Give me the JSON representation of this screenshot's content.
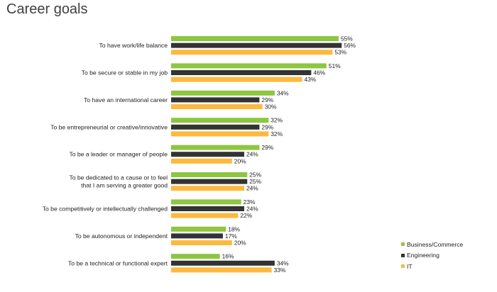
{
  "title": "Career goals",
  "colors": {
    "business": "#8DC63F",
    "engineering": "#333333",
    "it": "#FDB93D"
  },
  "chart_data": {
    "type": "bar",
    "orientation": "horizontal",
    "categories": [
      "To have work/life balance",
      "To be secure or stable in my job",
      "To have an international career",
      "To be entrepreneurial or creative/innovative",
      "To be a leader or manager of people",
      "To be dedicated to a cause or to feel|that I am serving a greater good",
      "To be competitively or intellectually challenged",
      "To be autonomous or independent",
      "To be a technical or functional expert"
    ],
    "series": [
      {
        "name": "Business/Commerce",
        "color": "#8DC63F",
        "values": [
          55,
          51,
          34,
          32,
          29,
          25,
          23,
          18,
          16
        ]
      },
      {
        "name": "Engineering",
        "color": "#333333",
        "values": [
          56,
          46,
          29,
          29,
          24,
          25,
          24,
          17,
          34
        ]
      },
      {
        "name": "IT",
        "color": "#FDB93D",
        "values": [
          53,
          43,
          30,
          32,
          20,
          24,
          22,
          20,
          33
        ]
      }
    ],
    "value_suffix": "%",
    "legend_position": "bottom-right",
    "grid": false,
    "axis_visible": false
  }
}
